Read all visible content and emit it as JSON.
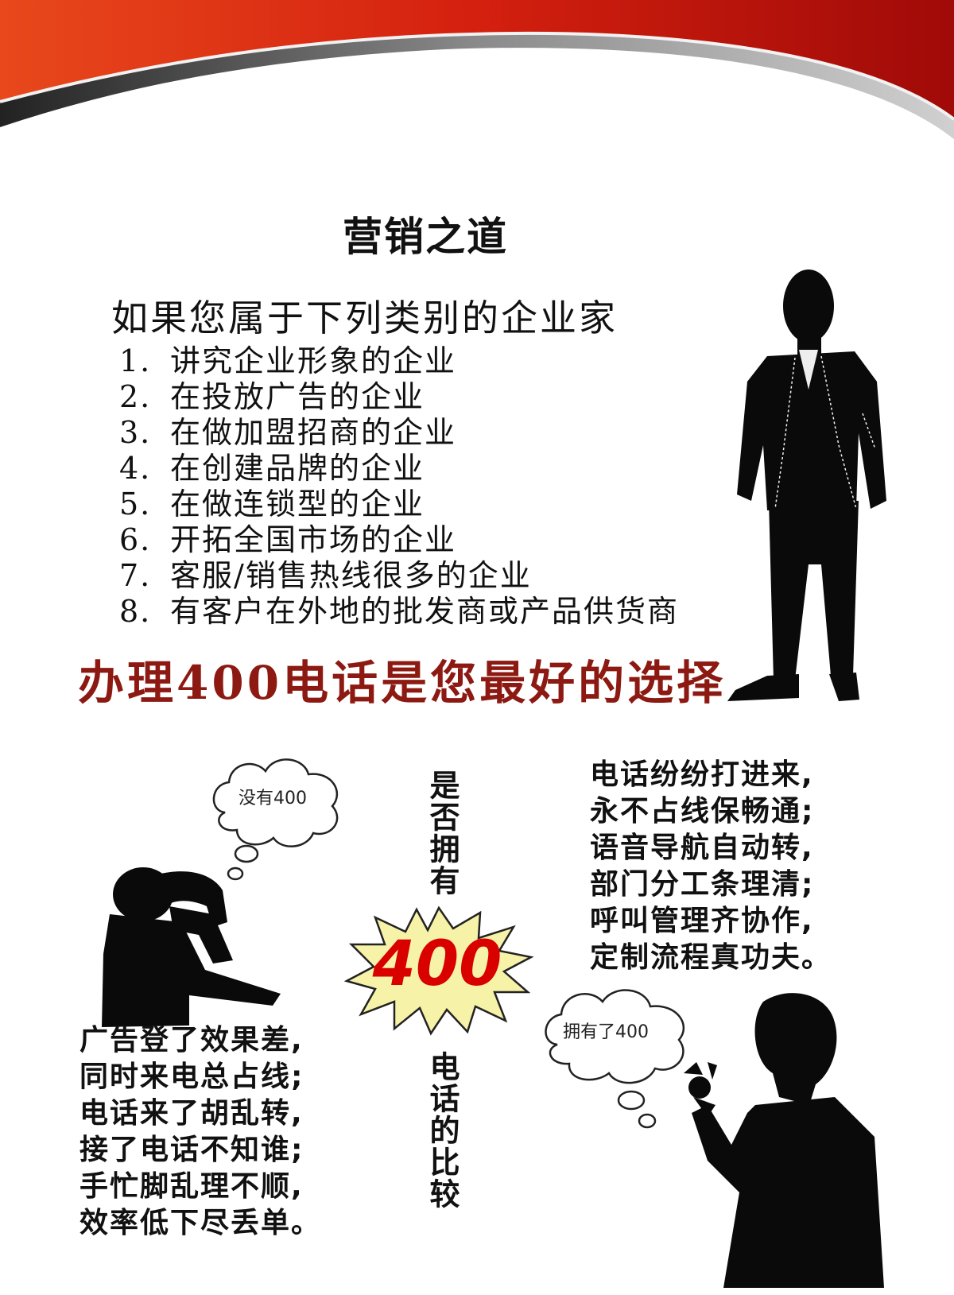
{
  "title": "营销之道",
  "intro": "如果您属于下列类别的企业家",
  "list": [
    {
      "num": "1.",
      "text": "讲究企业形象的企业"
    },
    {
      "num": "2.",
      "text": "在投放广告的企业"
    },
    {
      "num": "3.",
      "text": "在做加盟招商的企业"
    },
    {
      "num": "4.",
      "text": "在创建品牌的企业"
    },
    {
      "num": "5.",
      "text": "在做连锁型的企业"
    },
    {
      "num": "6.",
      "text": "开拓全国市场的企业"
    },
    {
      "num": "7.",
      "text": "客服/销售热线很多的企业"
    },
    {
      "num": "8.",
      "text": "有客户在外地的批发商或产品供货商"
    }
  ],
  "slogan": "办理400电话是您最好的选择",
  "comparison": {
    "left_cloud": "没有400",
    "right_cloud": "拥有了400",
    "vertical_top": "是否拥有",
    "badge": "400",
    "vertical_bottom": "电话的比较",
    "with_400": [
      "电话纷纷打进来,",
      "永不占线保畅通;",
      "语音导航自动转,",
      "部门分工条理清;",
      "呼叫管理齐协作,",
      "定制流程真功夫。"
    ],
    "without_400": [
      "广告登了效果差,",
      "同时来电总占线;",
      "电话来了胡乱转,",
      "接了电话不知谁;",
      "手忙脚乱理不顺,",
      "效率低下尽丢单。"
    ]
  },
  "colors": {
    "banner_red": "#d4200f",
    "slogan": "#8d1a12",
    "badge_fill": "#f6f2a8",
    "badge_text": "#d90000"
  }
}
